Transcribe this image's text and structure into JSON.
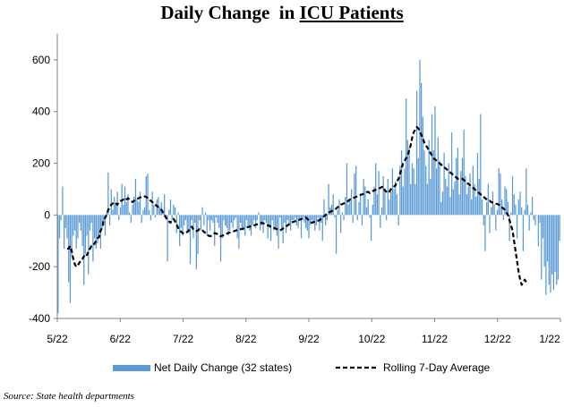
{
  "chart_data": {
    "type": "bar",
    "title_prefix": "Daily Change  in ",
    "title_emphasis": "ICU Patients",
    "source": "Source: State health departments",
    "ylim": [
      -400,
      700
    ],
    "yticks": [
      -400,
      -200,
      0,
      200,
      400,
      600
    ],
    "xtick_labels": [
      "5/22",
      "6/22",
      "7/22",
      "8/22",
      "9/22",
      "10/22",
      "11/22",
      "12/22",
      "1/22"
    ],
    "grid": false,
    "legend_position": "bottom",
    "series": [
      {
        "name": "Net Daily Change (32 states)",
        "kind": "bar",
        "color": "#5b9bd5",
        "values": [
          -380,
          -90,
          -20,
          110,
          -130,
          -50,
          -90,
          -260,
          -340,
          -160,
          -80,
          -60,
          -130,
          -90,
          -30,
          -60,
          -120,
          -270,
          -150,
          -80,
          -230,
          -60,
          -30,
          -180,
          -90,
          -130,
          -110,
          -90,
          -130,
          -50,
          -40,
          -80,
          10,
          165,
          -40,
          100,
          20,
          70,
          40,
          90,
          -20,
          30,
          120,
          40,
          110,
          50,
          80,
          10,
          -30,
          40,
          70,
          140,
          60,
          50,
          90,
          -30,
          20,
          30,
          150,
          160,
          20,
          -20,
          90,
          40,
          -10,
          60,
          70,
          30,
          50,
          20,
          80,
          -10,
          -180,
          20,
          60,
          -20,
          40,
          30,
          -70,
          10,
          -120,
          -50,
          -80,
          -40,
          -20,
          -60,
          -70,
          -190,
          -20,
          -90,
          -30,
          -210,
          -150,
          -20,
          -60,
          30,
          -40,
          10,
          -80,
          -20,
          -60,
          -20,
          -30,
          -120,
          -10,
          -30,
          -50,
          -180,
          -90,
          -20,
          -40,
          -50,
          -80,
          -60,
          -30,
          -50,
          -20,
          -10,
          -90,
          -130,
          -30,
          -50,
          -60,
          -80,
          -20,
          -40,
          -60,
          -80,
          -40,
          -20,
          -50,
          -20,
          10,
          -60,
          -40,
          -70,
          -20,
          -30,
          -90,
          -50,
          -100,
          -20,
          -60,
          -50,
          -80,
          -130,
          -10,
          -50,
          -110,
          -30,
          -70,
          -20,
          -40,
          -60,
          -20,
          -20,
          -10,
          -40,
          -50,
          -20,
          -90,
          -10,
          -30,
          -50,
          -60,
          -90,
          -40,
          -20,
          -30,
          -60,
          -40,
          -10,
          -60,
          -30,
          -100,
          60,
          -40,
          -20,
          120,
          30,
          40,
          80,
          -10,
          -150,
          20,
          60,
          -70,
          10,
          -20,
          70,
          200,
          40,
          60,
          100,
          -30,
          160,
          190,
          -20,
          50,
          80,
          -40,
          140,
          110,
          30,
          60,
          -10,
          -100,
          40,
          110,
          200,
          80,
          170,
          -50,
          30,
          150,
          90,
          -20,
          140,
          60,
          90,
          180,
          100,
          130,
          80,
          -40,
          190,
          250,
          110,
          180,
          450,
          290,
          260,
          120,
          200,
          180,
          120,
          480,
          220,
          600,
          510,
          380,
          250,
          190,
          120,
          290,
          140,
          390,
          250,
          420,
          180,
          300,
          210,
          50,
          90,
          240,
          140,
          110,
          200,
          70,
          320,
          100,
          130,
          220,
          260,
          80,
          170,
          220,
          330,
          150,
          80,
          110,
          160,
          60,
          190,
          120,
          70,
          240,
          140,
          390,
          60,
          -40,
          -140,
          50,
          120,
          -70,
          30,
          90,
          40,
          -60,
          20,
          180,
          160,
          60,
          -20,
          110,
          100,
          50,
          -100,
          10,
          150,
          80,
          40,
          -90,
          60,
          90,
          30,
          -140,
          20,
          180,
          40,
          -60,
          10,
          70,
          -20,
          -40,
          0,
          -120,
          -30,
          -250,
          -90,
          -200,
          -310,
          -180,
          -270,
          -300,
          -230,
          -290,
          -220,
          -270,
          -250,
          -100
        ]
      },
      {
        "name": "Rolling 7-Day Average",
        "kind": "line",
        "style": "dashed",
        "color": "#000000",
        "values": [
          null,
          null,
          null,
          null,
          null,
          null,
          -130,
          -130,
          -120,
          -140,
          -170,
          -190,
          -200,
          -195,
          -185,
          -175,
          -170,
          -160,
          -150,
          -155,
          -140,
          -130,
          -120,
          -120,
          -110,
          -100,
          -90,
          -85,
          -60,
          -50,
          -20,
          -10,
          0,
          20,
          30,
          40,
          45,
          50,
          45,
          40,
          50,
          55,
          55,
          60,
          55,
          60,
          65,
          60,
          55,
          50,
          55,
          60,
          62,
          65,
          68,
          70,
          70,
          72,
          70,
          65,
          60,
          55,
          50,
          45,
          40,
          35,
          30,
          25,
          20,
          10,
          0,
          -10,
          -20,
          -25,
          -30,
          -20,
          -15,
          -25,
          -35,
          -50,
          -60,
          -65,
          -70,
          -72,
          -70,
          -65,
          -60,
          -50,
          -45,
          -55,
          -60,
          -62,
          -60,
          -55,
          -58,
          -60,
          -65,
          -70,
          -75,
          -80,
          -82,
          -80,
          -75,
          -70,
          -72,
          -74,
          -80,
          -82,
          -80,
          -78,
          -75,
          -72,
          -70,
          -68,
          -66,
          -64,
          -62,
          -60,
          -58,
          -56,
          -55,
          -54,
          -52,
          -50,
          -48,
          -46,
          -45,
          -44,
          -42,
          -40,
          -38,
          -36,
          -35,
          -34,
          -30,
          -32,
          -35,
          -38,
          -40,
          -42,
          -45,
          -48,
          -50,
          -52,
          -55,
          -58,
          -60,
          -56,
          -52,
          -48,
          -44,
          -40,
          -36,
          -30,
          -28,
          -26,
          -24,
          -22,
          -20,
          -18,
          -16,
          -14,
          -12,
          -10,
          -15,
          -20,
          -25,
          -30,
          -28,
          -26,
          -24,
          -22,
          -20,
          -15,
          -10,
          -5,
          0,
          5,
          10,
          12,
          15,
          18,
          20,
          25,
          30,
          35,
          40,
          42,
          45,
          48,
          50,
          55,
          60,
          62,
          65,
          68,
          70,
          72,
          75,
          78,
          80,
          82,
          85,
          88,
          90,
          85,
          88,
          92,
          95,
          98,
          100,
          102,
          105,
          108,
          110,
          95,
          90,
          85,
          90,
          100,
          105,
          110,
          115,
          130,
          140,
          160,
          180,
          200,
          210,
          220,
          230,
          250,
          270,
          300,
          320,
          330,
          340,
          335,
          325,
          310,
          295,
          280,
          270,
          260,
          250,
          240,
          230,
          220,
          215,
          210,
          205,
          200,
          195,
          190,
          185,
          180,
          175,
          170,
          165,
          160,
          155,
          150,
          145,
          140,
          140,
          140,
          140,
          135,
          130,
          125,
          120,
          115,
          110,
          105,
          100,
          95,
          90,
          85,
          80,
          75,
          70,
          65,
          60,
          55,
          55,
          50,
          48,
          46,
          44,
          42,
          40,
          35,
          30,
          25,
          20,
          10,
          0,
          -20,
          -40,
          -60,
          -100,
          -140,
          -180,
          -220,
          -250,
          -270,
          -260,
          -250,
          -260,
          -255
        ]
      }
    ]
  }
}
